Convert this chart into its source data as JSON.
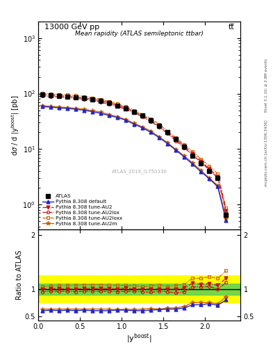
{
  "title_top": "13000 GeV pp",
  "title_top_right": "tt̅",
  "title_inner": "Mean rapidity (ATLAS semileptonic ttbar)",
  "watermark": "ATLAS_2019_I1750330",
  "ylabel_main": "dσ / d |y$^{boost}$| [pb]",
  "ylabel_ratio": "Ratio to ATLAS",
  "xlabel": "|y$^{boost}$|",
  "right_label_top": "Rivet 3.1.10; ≥ 2.8M events",
  "right_label_bot": "mcplots.cern.ch [arXiv:1306.3436]",
  "xc": [
    0.05,
    0.15,
    0.25,
    0.35,
    0.45,
    0.55,
    0.65,
    0.75,
    0.85,
    0.95,
    1.05,
    1.15,
    1.25,
    1.35,
    1.45,
    1.55,
    1.65,
    1.75,
    1.85,
    1.95,
    2.05,
    2.15,
    2.25
  ],
  "atlas_y": [
    96,
    93,
    91,
    89,
    86,
    82,
    78,
    73,
    67,
    61,
    54,
    47,
    40,
    33,
    26,
    20,
    15,
    11,
    7.5,
    5.5,
    4.0,
    3.0,
    0.65
  ],
  "atlas_yerr": [
    8,
    7,
    6,
    6,
    5,
    5,
    5,
    4,
    4,
    3.5,
    3,
    2.5,
    2,
    1.5,
    1.2,
    1.0,
    0.8,
    0.6,
    0.5,
    0.4,
    0.3,
    0.25,
    0.07
  ],
  "pythia_default_y": [
    58,
    57,
    55,
    54,
    52,
    50,
    47,
    44,
    40,
    37,
    33,
    28,
    24,
    20,
    16,
    12.5,
    9.5,
    7.2,
    5.3,
    3.9,
    2.9,
    2.1,
    0.52
  ],
  "pythia_AU2_y": [
    96,
    94,
    92,
    89,
    86,
    83,
    79,
    74,
    68,
    61,
    55,
    47,
    40,
    33,
    26,
    20,
    15,
    11.2,
    8.3,
    6.0,
    4.4,
    3.2,
    0.78
  ],
  "pythia_AU2lox_y": [
    91,
    89,
    87,
    85,
    82,
    79,
    75,
    70,
    64,
    58,
    52,
    45,
    38,
    31,
    25,
    19,
    14,
    10.5,
    7.8,
    5.7,
    4.2,
    3.0,
    0.73
  ],
  "pythia_AU2loxx_y": [
    101,
    99,
    97,
    95,
    92,
    89,
    84,
    79,
    72,
    65,
    58,
    50,
    42,
    35,
    28,
    21,
    16,
    12,
    9.0,
    6.6,
    4.9,
    3.6,
    0.87
  ],
  "pythia_AU2m_y": [
    60,
    59,
    57,
    56,
    54,
    52,
    49,
    46,
    42,
    38,
    34,
    29,
    25,
    21,
    16.5,
    13,
    9.8,
    7.5,
    5.6,
    4.1,
    3.0,
    2.2,
    0.56
  ],
  "ratio_default": [
    0.6,
    0.61,
    0.6,
    0.61,
    0.6,
    0.61,
    0.6,
    0.6,
    0.6,
    0.61,
    0.61,
    0.6,
    0.6,
    0.61,
    0.62,
    0.63,
    0.63,
    0.65,
    0.71,
    0.71,
    0.73,
    0.7,
    0.8
  ],
  "ratio_AU2": [
    1.0,
    1.01,
    1.01,
    1.0,
    1.0,
    1.01,
    1.01,
    1.01,
    1.01,
    1.0,
    1.02,
    1.0,
    1.0,
    1.0,
    1.0,
    1.0,
    1.0,
    1.02,
    1.11,
    1.09,
    1.1,
    1.07,
    1.2
  ],
  "ratio_AU2lox": [
    0.95,
    0.96,
    0.96,
    0.96,
    0.95,
    0.96,
    0.96,
    0.96,
    0.96,
    0.95,
    0.96,
    0.96,
    0.95,
    0.94,
    0.96,
    0.95,
    0.93,
    0.95,
    1.04,
    1.04,
    1.05,
    1.0,
    1.12
  ],
  "ratio_AU2loxx": [
    1.05,
    1.06,
    1.07,
    1.07,
    1.07,
    1.08,
    1.08,
    1.08,
    1.07,
    1.07,
    1.07,
    1.06,
    1.05,
    1.06,
    1.08,
    1.05,
    1.07,
    1.09,
    1.2,
    1.2,
    1.23,
    1.2,
    1.34
  ],
  "ratio_AU2m": [
    0.63,
    0.63,
    0.63,
    0.63,
    0.63,
    0.63,
    0.63,
    0.63,
    0.63,
    0.62,
    0.63,
    0.62,
    0.63,
    0.64,
    0.63,
    0.65,
    0.65,
    0.68,
    0.75,
    0.75,
    0.75,
    0.73,
    0.86
  ],
  "green_lo": 0.9,
  "green_hi": 1.1,
  "yellow_lo": 0.75,
  "yellow_hi": 1.25,
  "color_default": "#2222cc",
  "color_AU2": "#cc1111",
  "color_AU2lox": "#cc1111",
  "color_AU2loxx": "#cc6600",
  "color_AU2m": "#cc6600",
  "ylim_main": [
    0.35,
    2000
  ],
  "ylim_ratio": [
    0.42,
    2.1
  ],
  "xlim": [
    0.0,
    2.42
  ]
}
